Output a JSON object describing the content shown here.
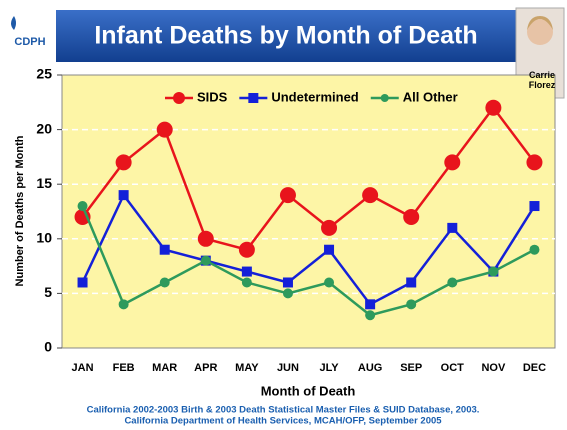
{
  "logo": "CDPH",
  "photo_caption": "Carrie Florez",
  "chart_data": {
    "type": "line",
    "title": "Infant Deaths by Month of Death",
    "x_label": "Month of Death",
    "y_label": "Number of Deaths per Month",
    "categories": [
      "JAN",
      "FEB",
      "MAR",
      "APR",
      "MAY",
      "JUN",
      "JLY",
      "AUG",
      "SEP",
      "OCT",
      "NOV",
      "DEC"
    ],
    "series": [
      {
        "name": "SIDS",
        "color": "#e8141c",
        "marker": "circle-large",
        "values": [
          12,
          17,
          20,
          10,
          9,
          14,
          11,
          14,
          12,
          17,
          22,
          17
        ]
      },
      {
        "name": "Undetermined",
        "color": "#1420d8",
        "marker": "square",
        "values": [
          6,
          14,
          9,
          8,
          7,
          6,
          9,
          4,
          6,
          11,
          7,
          13
        ]
      },
      {
        "name": "All Other",
        "color": "#2e9a5c",
        "marker": "circle",
        "values": [
          13,
          4,
          6,
          8,
          6,
          5,
          6,
          3,
          4,
          6,
          7,
          9
        ]
      }
    ],
    "ylim": [
      0,
      25
    ],
    "yticks": [
      0,
      5,
      10,
      15,
      20,
      25
    ],
    "grid": true,
    "legend": "top",
    "source": [
      "California 2002-2003 Birth & 2003 Death Statistical Master Files & SUID Database, 2003.",
      "California Department of Health Services, MCAH/OFP, September 2005"
    ]
  }
}
